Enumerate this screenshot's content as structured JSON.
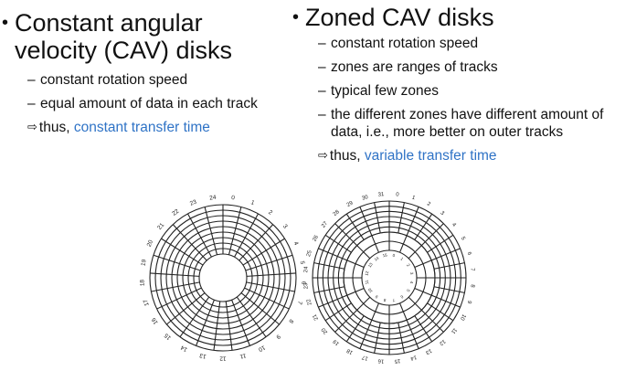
{
  "left": {
    "title_line1": "Constant angular",
    "title_line2": "velocity (CAV) disks",
    "items": [
      "constant rotation speed",
      "equal amount of data in each track"
    ],
    "thus_prefix": "thus, ",
    "thus_highlight": "constant transfer time"
  },
  "right": {
    "title": "Zoned CAV disks",
    "items": [
      "constant rotation speed",
      "zones are ranges of tracks",
      "typical few zones",
      "the different zones have different amount of data, i.e., more better on outer tracks"
    ],
    "thus_prefix": "thus, ",
    "thus_highlight": "variable transfer time"
  },
  "symbols": {
    "bullet": "•",
    "dash": "–",
    "arrow": "⇨"
  },
  "colors": {
    "highlight": "#2f73c6",
    "text": "#111111"
  },
  "disk_cav": {
    "sectors": 25,
    "labels": [
      "0",
      "1",
      "2",
      "3",
      "4",
      "5",
      "6",
      "7",
      "8",
      "9",
      "10",
      "11",
      "12",
      "13",
      "14",
      "15",
      "16",
      "17",
      "18",
      "19",
      "20",
      "21",
      "22",
      "23",
      "24"
    ]
  },
  "disk_zoned": {
    "outer_sectors": 32,
    "inner_sectors": 16,
    "outer_labels": [
      "0",
      "1",
      "2",
      "3",
      "4",
      "5",
      "6",
      "7",
      "8",
      "9",
      "10",
      "11",
      "12",
      "13",
      "14",
      "15",
      "16",
      "17",
      "18",
      "19",
      "20",
      "21",
      "22",
      "23",
      "24",
      "25",
      "26",
      "27",
      "28",
      "29",
      "30",
      "31"
    ],
    "inner_labels": [
      "0",
      "1",
      "2",
      "3",
      "4",
      "5",
      "6",
      "7",
      "8",
      "9",
      "10",
      "11",
      "12",
      "13",
      "14",
      "15"
    ]
  }
}
